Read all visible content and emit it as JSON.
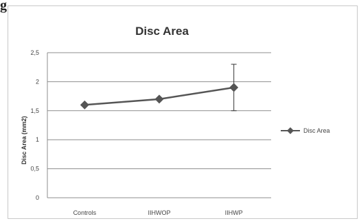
{
  "corner_text": "g",
  "chart_data": {
    "type": "line",
    "title": "Disc Area",
    "xlabel": "",
    "ylabel": "Disc Area (mm2)",
    "categories": [
      "Controls",
      "IIHWOP",
      "IIHWP"
    ],
    "series": [
      {
        "name": "Disc Area",
        "values": [
          1.6,
          1.7,
          1.9
        ],
        "error": [
          0,
          0,
          0.4
        ],
        "color": "#555555",
        "marker": "diamond"
      }
    ],
    "ylim": [
      0,
      2.5
    ],
    "yticks": [
      "0",
      "0,5",
      "1",
      "1,5",
      "2",
      "2,5"
    ],
    "grid": true,
    "legend": "right"
  }
}
